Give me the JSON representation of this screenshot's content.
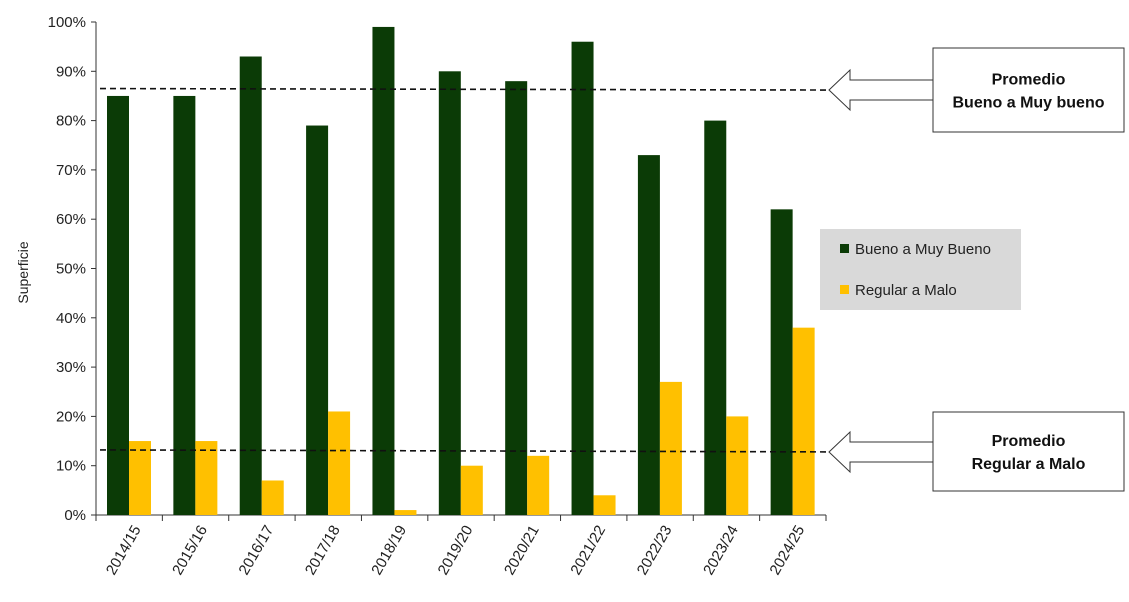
{
  "chart_data": {
    "type": "bar",
    "ylabel": "Superficie",
    "xlabel": "",
    "title": "",
    "ylim": [
      0,
      100
    ],
    "y_ticks": [
      0,
      10,
      20,
      30,
      40,
      50,
      60,
      70,
      80,
      90,
      100
    ],
    "y_tick_suffix": "%",
    "categories": [
      "2014/15",
      "2015/16",
      "2016/17",
      "2017/18",
      "2018/19",
      "2019/20",
      "2020/21",
      "2021/22",
      "2022/23",
      "2023/24",
      "2024/25"
    ],
    "series": [
      {
        "name": "Bueno a Muy Bueno",
        "color": "#0b3b06",
        "values": [
          85,
          85,
          93,
          79,
          99,
          90,
          88,
          96,
          73,
          80,
          62
        ]
      },
      {
        "name": "Regular a Malo",
        "color": "#ffc000",
        "values": [
          15,
          15,
          7,
          21,
          1,
          10,
          12,
          4,
          27,
          20,
          38
        ]
      }
    ],
    "reference_lines": [
      {
        "series": "Bueno a Muy Bueno",
        "style": "dashed",
        "y_start": 86.5,
        "y_end": 86.2
      },
      {
        "series": "Regular a Malo",
        "style": "dashed",
        "y_start": 13.2,
        "y_end": 12.8
      }
    ],
    "legend": {
      "placement": "right",
      "background": "#d9d9d9"
    },
    "callouts": [
      {
        "lines": [
          "Promedio",
          "Bueno a Muy bueno"
        ]
      },
      {
        "lines": [
          "Promedio",
          "Regular a Malo"
        ]
      }
    ],
    "grid": false
  }
}
